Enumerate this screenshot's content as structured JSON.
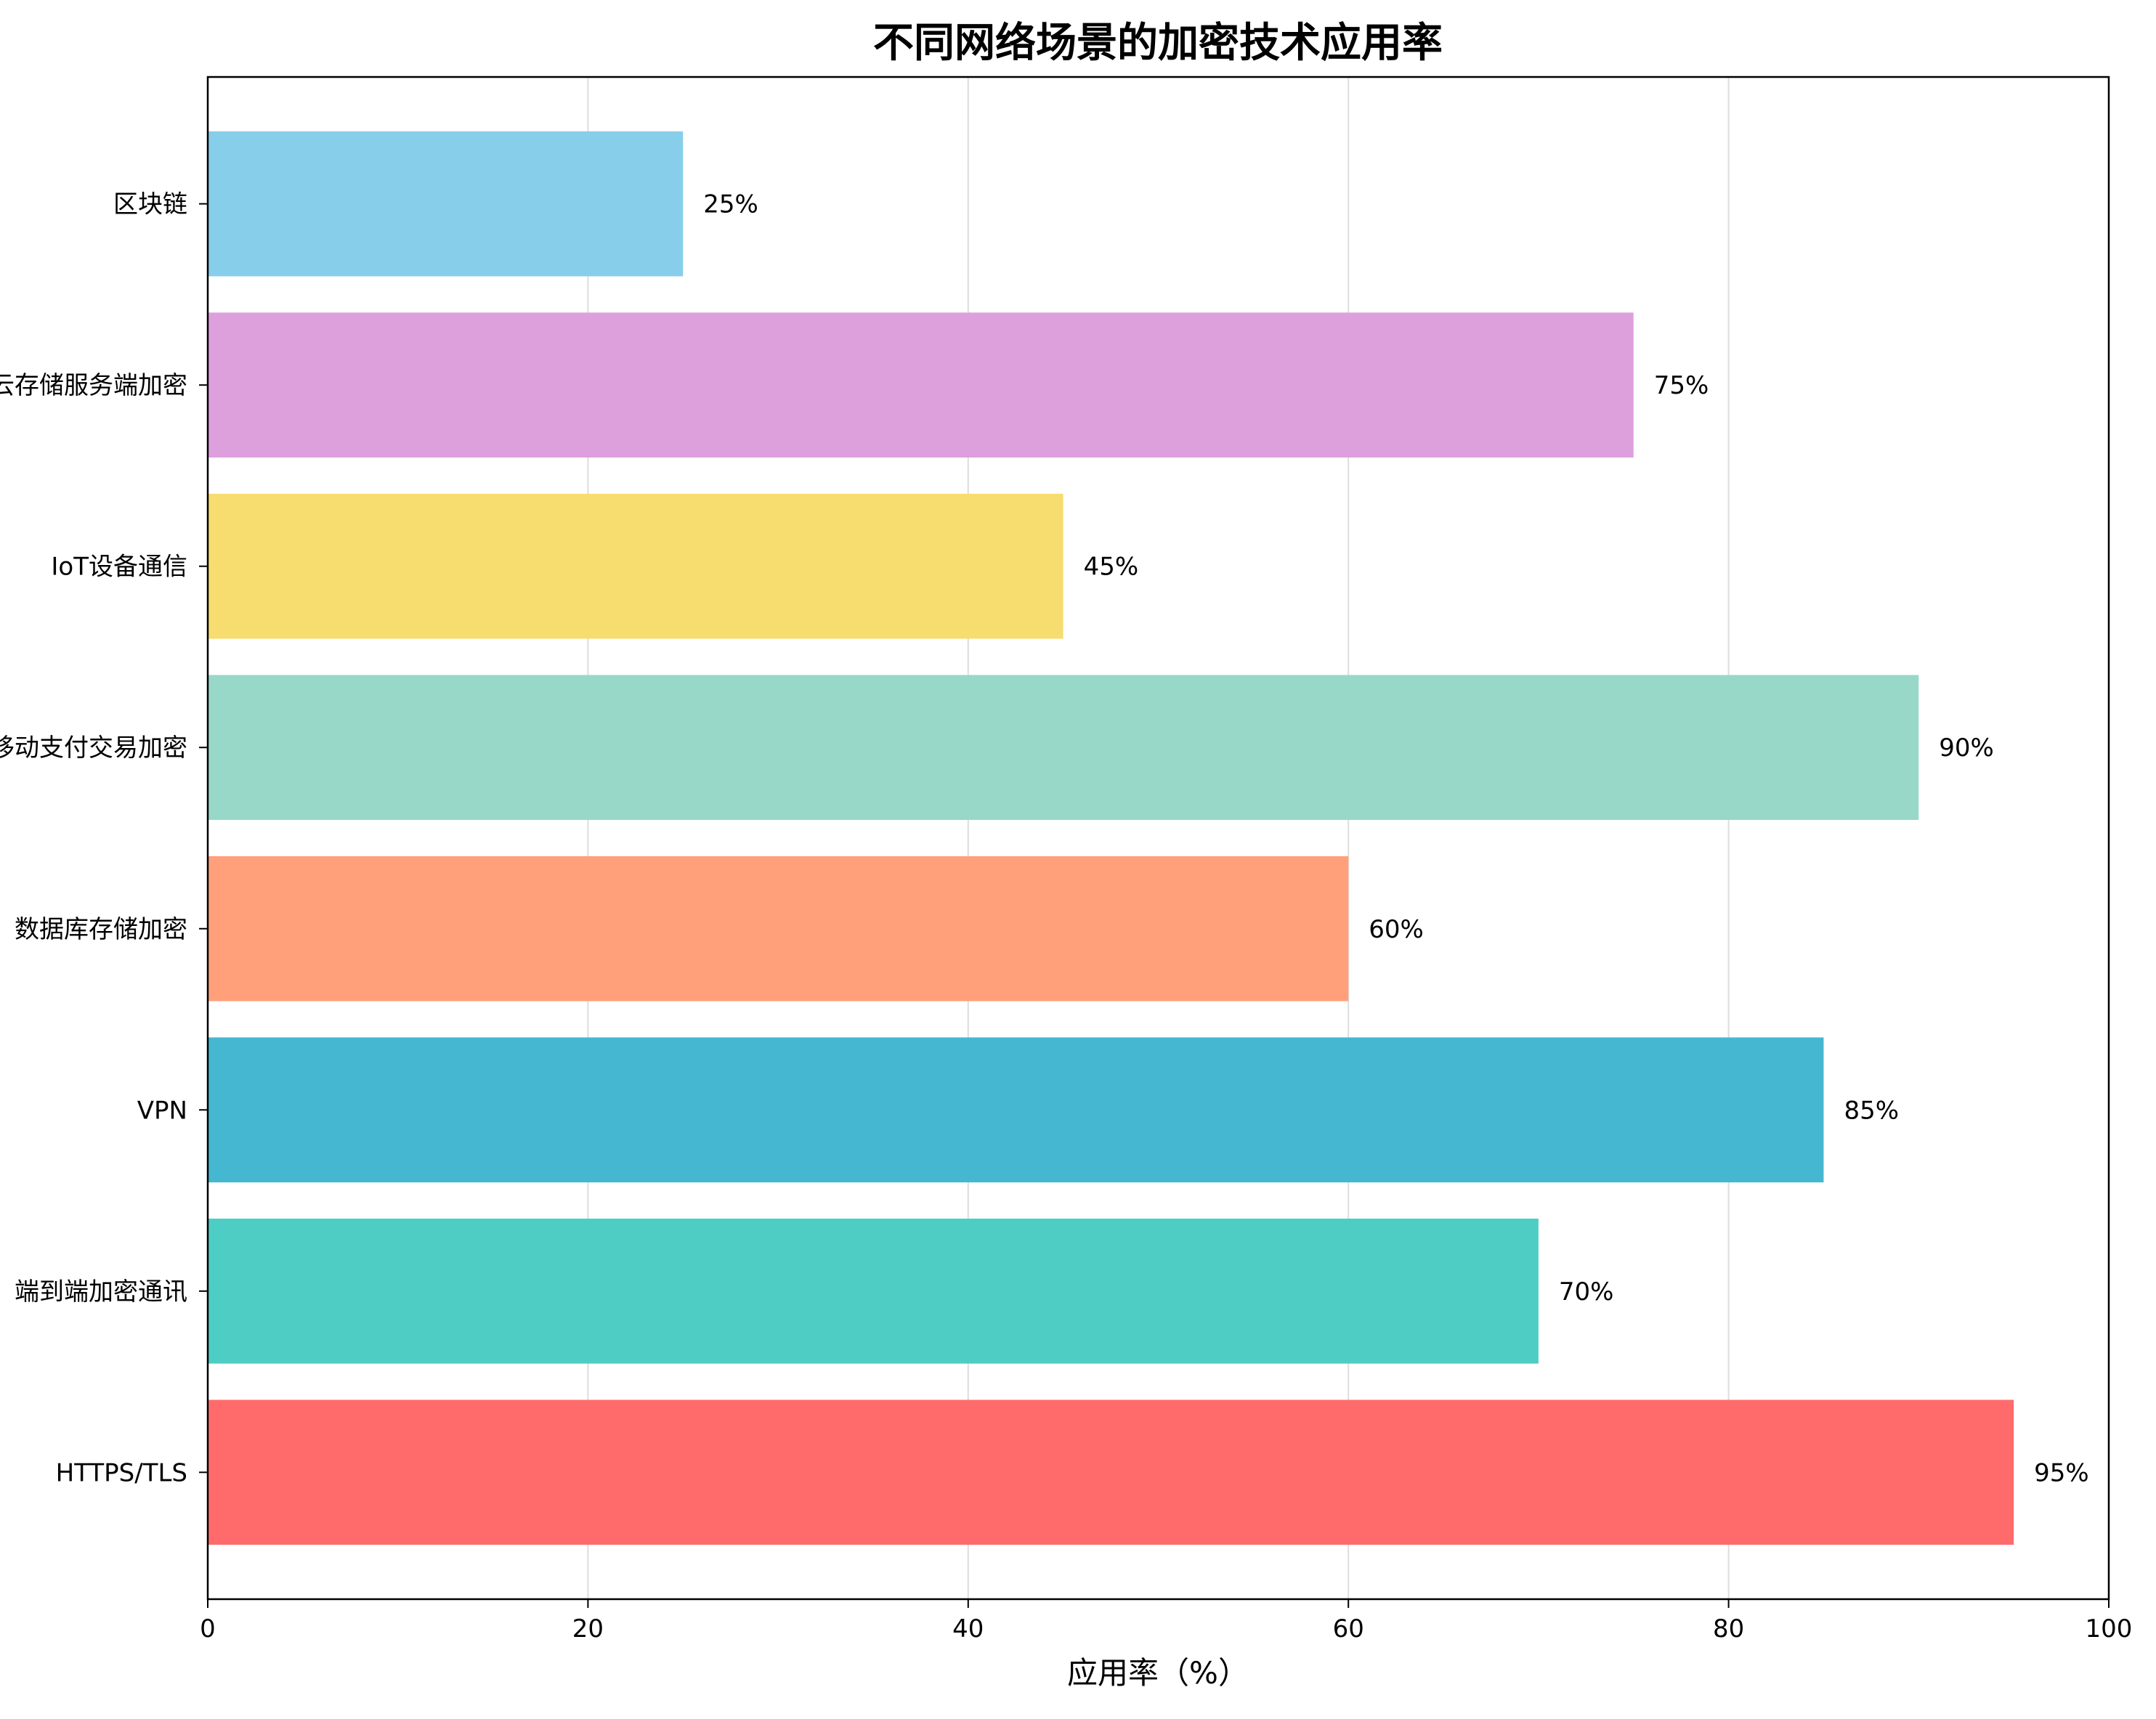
{
  "chart_data": {
    "type": "bar",
    "orientation": "horizontal",
    "title": "不同网络场景的加密技术应用率",
    "xlabel": "应用率（%）",
    "ylabel": "",
    "xlim": [
      0,
      100
    ],
    "xticks": [
      0,
      20,
      40,
      60,
      80,
      100
    ],
    "grid": "x",
    "value_suffix": "%",
    "categories": [
      "HTTPS/TLS",
      "端到端加密通讯",
      "VPN",
      "数据库存储加密",
      "移动支付交易加密",
      "IoT设备通信",
      "云存储服务端加密",
      "区块链"
    ],
    "values": [
      95,
      70,
      85,
      60,
      90,
      45,
      75,
      25
    ],
    "colors": [
      "#FF6B6B",
      "#4ECDC4",
      "#45B7D1",
      "#FFA07A",
      "#98D8C8",
      "#F7DC6F",
      "#DDA0DD",
      "#87CEEB"
    ]
  }
}
